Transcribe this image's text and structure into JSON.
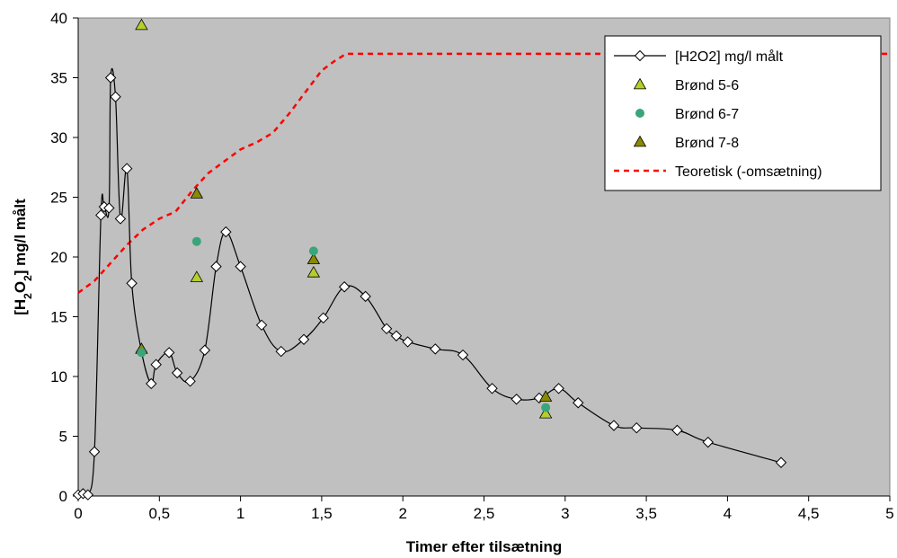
{
  "chart_data": {
    "type": "line",
    "title": "",
    "xlabel": "Timer efter tilsætning",
    "ylabel_parts": [
      "[H",
      "2",
      "O",
      "2",
      "] mg/l målt"
    ],
    "xlim": [
      0,
      5
    ],
    "ylim": [
      0,
      40
    ],
    "x_ticks": [
      "0",
      "0,5",
      "1",
      "1,5",
      "2",
      "2,5",
      "3",
      "3,5",
      "4",
      "4,5",
      "5"
    ],
    "y_ticks": [
      "0",
      "5",
      "10",
      "15",
      "20",
      "25",
      "30",
      "35",
      "40"
    ],
    "grid": false,
    "plot_background": "#c0c0c0",
    "legend_position": "top-right",
    "series": [
      {
        "name": "[H2O2] mg/l målt",
        "style": "line-diamond",
        "color": "#000000",
        "points": [
          [
            0.0,
            0.1
          ],
          [
            0.03,
            0.2
          ],
          [
            0.06,
            0.1
          ],
          [
            0.1,
            3.7
          ],
          [
            0.14,
            23.5
          ],
          [
            0.16,
            24.2
          ],
          [
            0.19,
            24.1
          ],
          [
            0.2,
            35.0
          ],
          [
            0.23,
            33.4
          ],
          [
            0.26,
            23.2
          ],
          [
            0.3,
            27.4
          ],
          [
            0.33,
            17.8
          ],
          [
            0.39,
            12.1
          ],
          [
            0.45,
            9.4
          ],
          [
            0.48,
            11.0
          ],
          [
            0.56,
            12.0
          ],
          [
            0.61,
            10.3
          ],
          [
            0.69,
            9.6
          ],
          [
            0.78,
            12.2
          ],
          [
            0.85,
            19.2
          ],
          [
            0.91,
            22.1
          ],
          [
            1.0,
            19.2
          ],
          [
            1.13,
            14.3
          ],
          [
            1.25,
            12.1
          ],
          [
            1.39,
            13.1
          ],
          [
            1.51,
            14.9
          ],
          [
            1.64,
            17.5
          ],
          [
            1.77,
            16.7
          ],
          [
            1.9,
            14.0
          ],
          [
            1.96,
            13.4
          ],
          [
            2.03,
            12.9
          ],
          [
            2.2,
            12.3
          ],
          [
            2.37,
            11.8
          ],
          [
            2.55,
            9.0
          ],
          [
            2.7,
            8.1
          ],
          [
            2.84,
            8.2
          ],
          [
            2.96,
            9.0
          ],
          [
            3.08,
            7.8
          ],
          [
            3.3,
            5.9
          ],
          [
            3.44,
            5.7
          ],
          [
            3.69,
            5.5
          ],
          [
            3.88,
            4.5
          ],
          [
            4.33,
            2.8
          ]
        ]
      },
      {
        "name": "Brønd 5-6",
        "style": "triangle",
        "color": "#b4cf2b",
        "points": [
          [
            0.39,
            39.4
          ],
          [
            0.73,
            18.3
          ],
          [
            1.45,
            18.7
          ],
          [
            2.88,
            6.9
          ]
        ]
      },
      {
        "name": "Brønd 6-7",
        "style": "circle",
        "color": "#3aa57a",
        "points": [
          [
            0.39,
            12.0
          ],
          [
            0.73,
            21.3
          ],
          [
            1.45,
            20.5
          ],
          [
            2.88,
            7.4
          ]
        ]
      },
      {
        "name": "Brønd 7-8",
        "style": "triangle",
        "color": "#8a8a00",
        "points": [
          [
            0.39,
            12.3
          ],
          [
            0.73,
            25.3
          ],
          [
            1.45,
            19.8
          ],
          [
            2.88,
            8.3
          ]
        ]
      },
      {
        "name": "Teoretisk (-omsætning)",
        "style": "dashed",
        "color": "#ff0000",
        "points": [
          [
            0.0,
            17.0
          ],
          [
            0.1,
            18.0
          ],
          [
            0.2,
            19.5
          ],
          [
            0.3,
            21.0
          ],
          [
            0.4,
            22.3
          ],
          [
            0.5,
            23.2
          ],
          [
            0.6,
            23.8
          ],
          [
            0.7,
            25.5
          ],
          [
            0.8,
            27.0
          ],
          [
            0.9,
            28.0
          ],
          [
            1.0,
            29.0
          ],
          [
            1.1,
            29.6
          ],
          [
            1.2,
            30.4
          ],
          [
            1.3,
            32.0
          ],
          [
            1.4,
            33.8
          ],
          [
            1.5,
            35.6
          ],
          [
            1.58,
            36.4
          ],
          [
            1.65,
            37.0
          ],
          [
            5.0,
            37.0
          ]
        ]
      }
    ]
  }
}
